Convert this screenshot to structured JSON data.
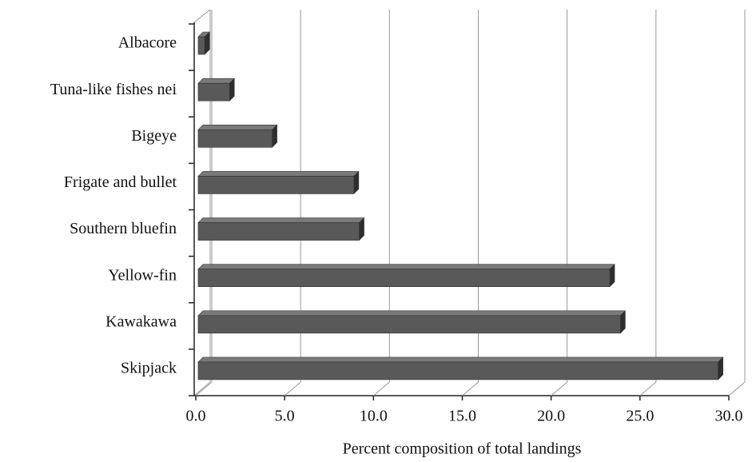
{
  "chart_data": {
    "type": "bar",
    "orientation": "horizontal",
    "x_label": "Percent composition of total landings",
    "categories": [
      "Albacore",
      "Tuna-like fishes nei",
      "Bigeye",
      "Frigate and bullet",
      "Southern bluefin",
      "Yellow-fin",
      "Kawakawa",
      "Skipjack"
    ],
    "values": [
      0.5,
      1.9,
      4.3,
      8.9,
      9.2,
      23.3,
      23.9,
      29.4
    ],
    "color": "#595959",
    "xlim": [
      0,
      30
    ],
    "xticks": [
      {
        "value": 0,
        "label": "0.0"
      },
      {
        "value": 5,
        "label": "5.0"
      },
      {
        "value": 10,
        "label": "10.0"
      },
      {
        "value": 15,
        "label": "15.0"
      },
      {
        "value": 20,
        "label": "20.0"
      },
      {
        "value": 25,
        "label": "25.0"
      },
      {
        "value": 30,
        "label": "30.0"
      }
    ],
    "grid": true
  }
}
